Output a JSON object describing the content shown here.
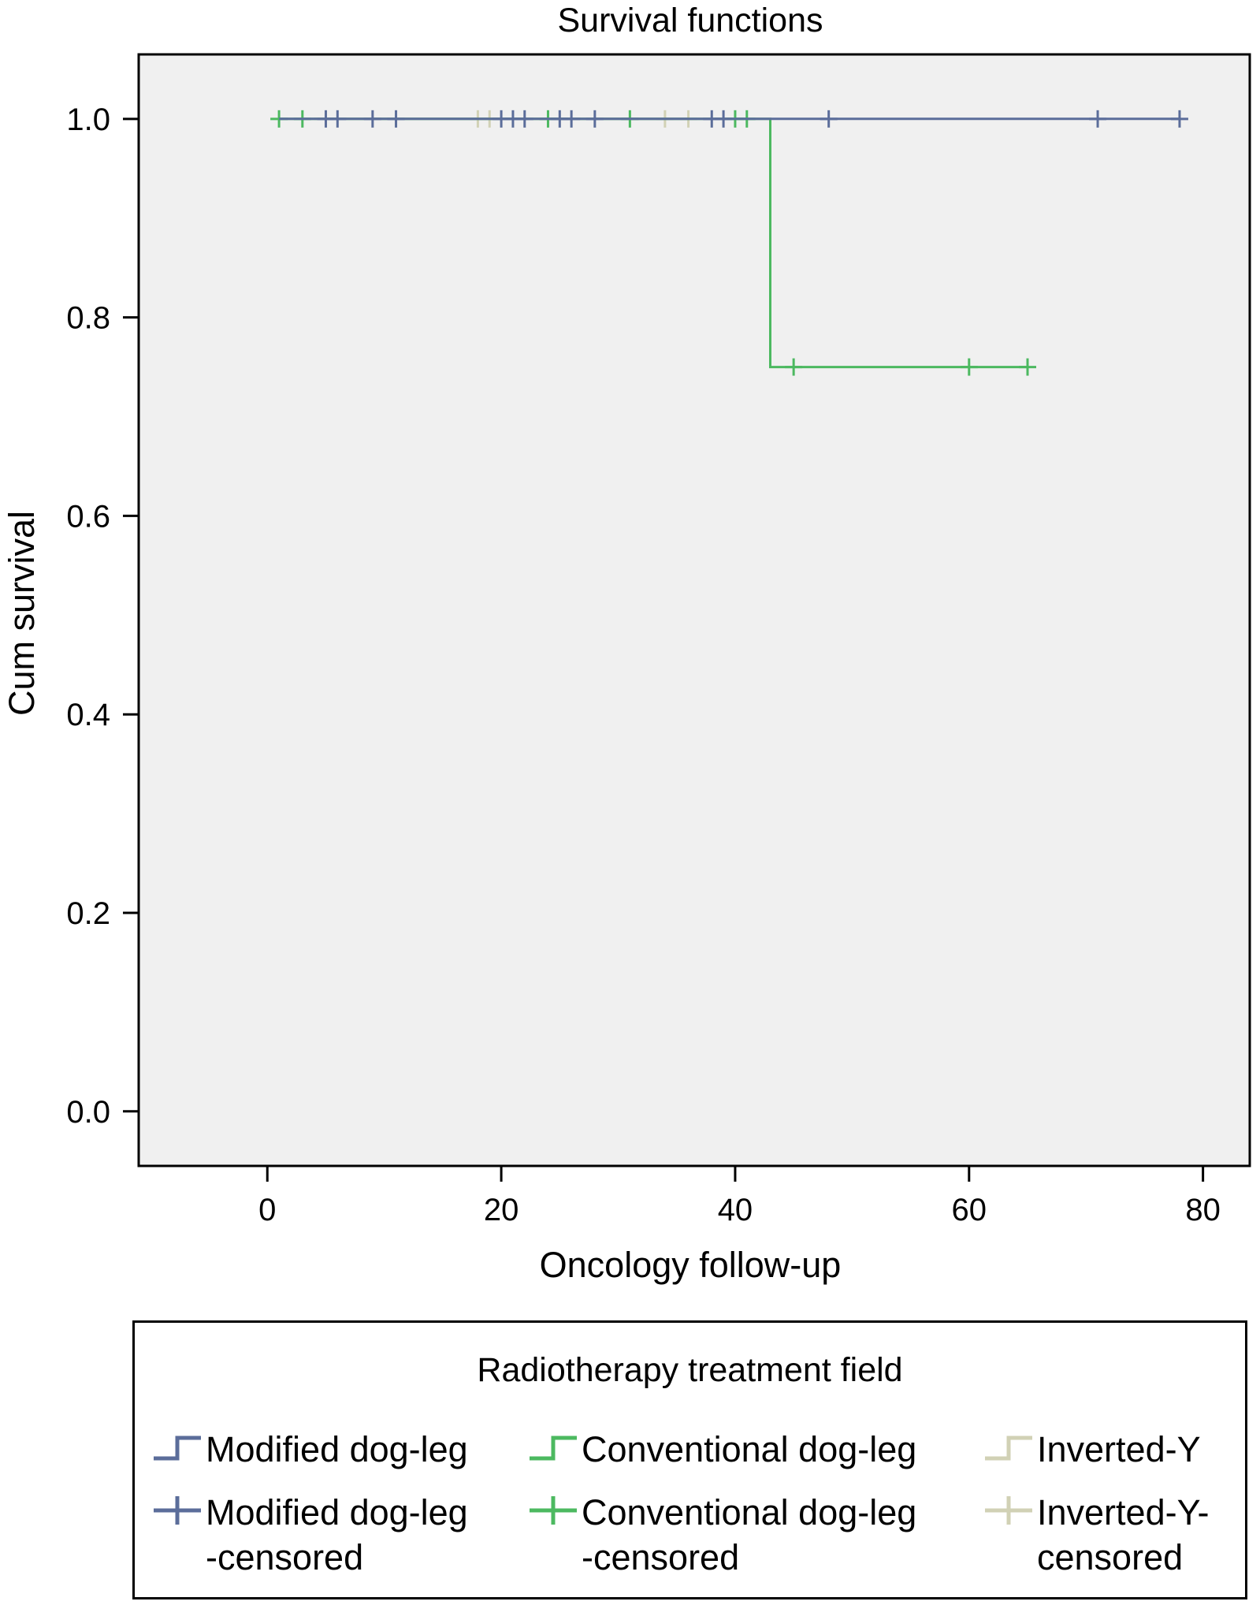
{
  "chart_data": {
    "type": "line",
    "subtype": "kaplan-meier step",
    "title": "Survival functions",
    "xlabel": "Oncology follow-up",
    "ylabel": "Cum survival",
    "xlim": [
      -11,
      84
    ],
    "ylim": [
      -0.055,
      1.065
    ],
    "x_ticks": [
      0,
      20,
      40,
      60,
      80
    ],
    "x_tick_labels": [
      "0",
      "20",
      "40",
      "60",
      "80"
    ],
    "y_ticks": [
      0.0,
      0.2,
      0.4,
      0.6,
      0.8,
      1.0
    ],
    "y_tick_labels": [
      "0.0",
      "0.2",
      "0.4",
      "0.6",
      "0.8",
      "1.0"
    ],
    "grid": false,
    "plot_background": "#f0f0f0",
    "series": [
      {
        "name": "Modified dog-leg",
        "color": "#5b6d9a",
        "steps": [
          [
            1,
            1.0
          ],
          [
            78,
            1.0
          ]
        ],
        "censored": [
          [
            5,
            1.0
          ],
          [
            6,
            1.0
          ],
          [
            9,
            1.0
          ],
          [
            11,
            1.0
          ],
          [
            20,
            1.0
          ],
          [
            21,
            1.0
          ],
          [
            22,
            1.0
          ],
          [
            25,
            1.0
          ],
          [
            26,
            1.0
          ],
          [
            28,
            1.0
          ],
          [
            38,
            1.0
          ],
          [
            39,
            1.0
          ],
          [
            48,
            1.0
          ],
          [
            71,
            1.0
          ],
          [
            78,
            1.0
          ]
        ]
      },
      {
        "name": "Conventional dog-leg",
        "color": "#4cb960",
        "steps": [
          [
            1,
            1.0
          ],
          [
            43,
            1.0
          ],
          [
            43,
            0.75
          ],
          [
            65,
            0.75
          ]
        ],
        "censored": [
          [
            1,
            1.0
          ],
          [
            3,
            1.0
          ],
          [
            24,
            1.0
          ],
          [
            31,
            1.0
          ],
          [
            40,
            1.0
          ],
          [
            41,
            1.0
          ],
          [
            45,
            0.75
          ],
          [
            60,
            0.75
          ],
          [
            65,
            0.75
          ]
        ]
      },
      {
        "name": "Inverted-Y",
        "color": "#d1d1b5",
        "steps": [
          [
            4,
            1.0
          ],
          [
            36,
            1.0
          ]
        ],
        "censored": [
          [
            18,
            1.0
          ],
          [
            19,
            1.0
          ],
          [
            34,
            1.0
          ],
          [
            36,
            1.0
          ]
        ]
      }
    ],
    "legend": {
      "title": "Radiotherapy treatment field",
      "placement": "below",
      "entries": [
        {
          "label": "Modified dog-leg",
          "kind": "step",
          "color": "#5b6d9a"
        },
        {
          "label": "Conventional dog-leg",
          "kind": "step",
          "color": "#4cb960"
        },
        {
          "label": "Inverted-Y",
          "kind": "step",
          "color": "#d1d1b5"
        },
        {
          "label": "Modified dog-leg\n-censored",
          "kind": "cross",
          "color": "#5b6d9a"
        },
        {
          "label": "Conventional dog-leg\n-censored",
          "kind": "cross",
          "color": "#4cb960"
        },
        {
          "label": "Inverted-Y-\ncensored",
          "kind": "cross",
          "color": "#d1d1b5"
        }
      ]
    }
  }
}
